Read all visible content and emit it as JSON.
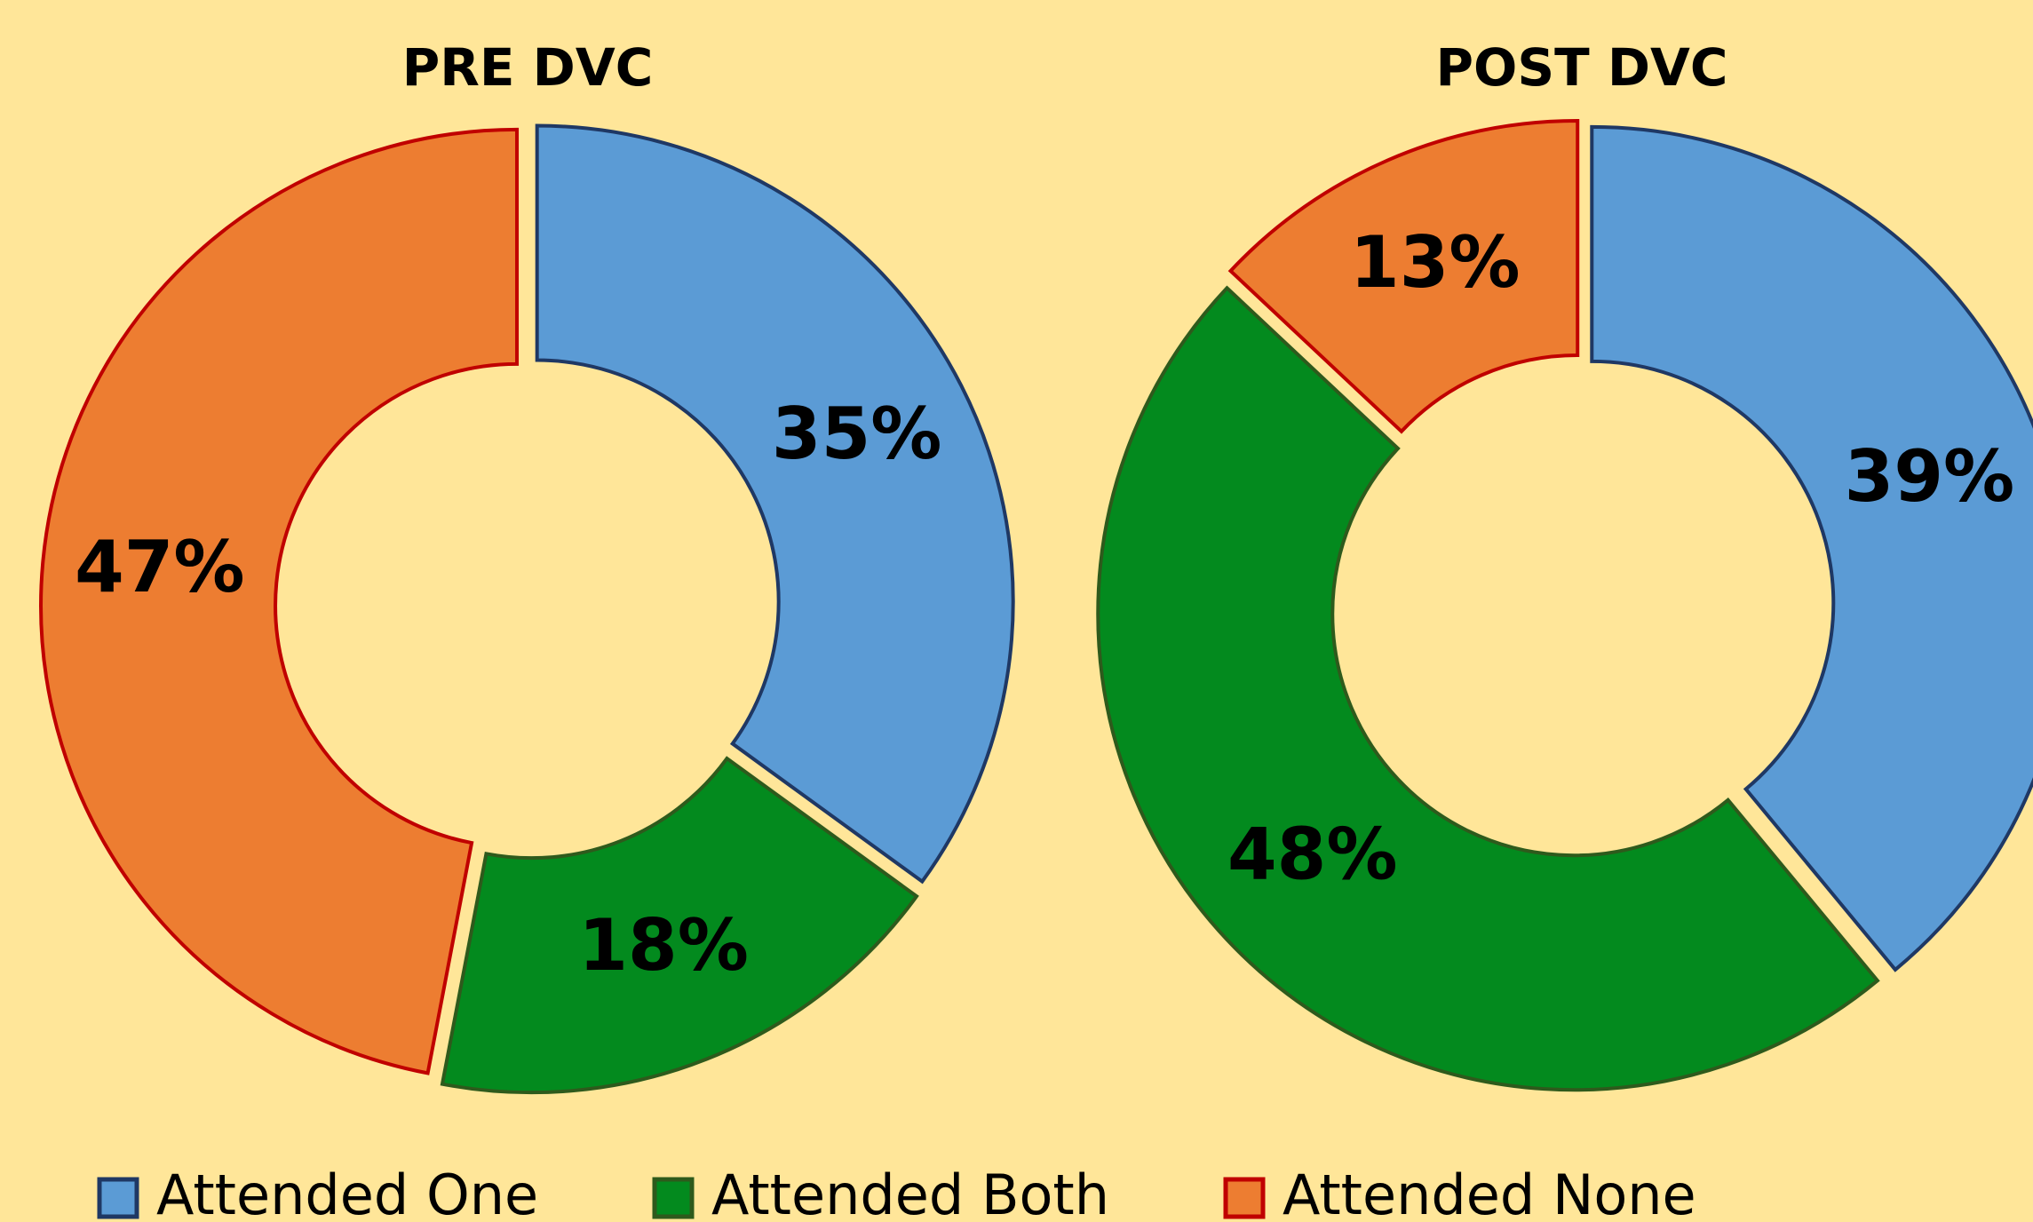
{
  "chart_data": [
    {
      "type": "donut",
      "title": "PRE DVC",
      "values": [
        35,
        18,
        47
      ],
      "value_labels": [
        "35%",
        "18%",
        "47%"
      ]
    },
    {
      "type": "donut",
      "title": "POST DVC",
      "values": [
        39,
        48,
        13
      ],
      "value_labels": [
        "39%",
        "48%",
        "13%"
      ]
    }
  ],
  "legend": {
    "labels": [
      "Attended One",
      "Attended Both",
      "Attended None"
    ],
    "colors": [
      "#5b9bd5",
      "#038a1e",
      "#ed7d31"
    ],
    "edge_colors": [
      "#1f3864",
      "#2e5a1c",
      "#c00000"
    ]
  }
}
